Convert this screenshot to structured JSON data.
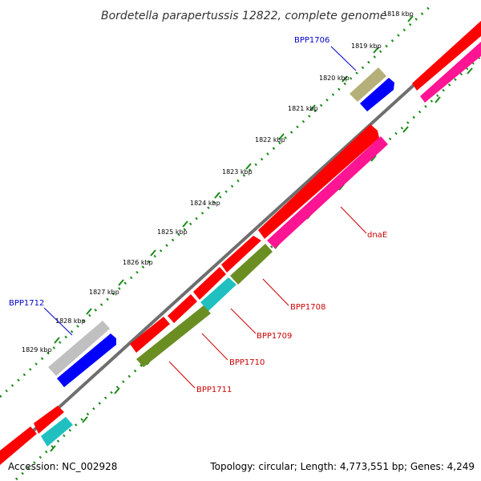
{
  "title": "Bordetella parapertussis 12822, complete genome",
  "footer": {
    "accession": "Accession: NC_002928",
    "summary": "Topology: circular; Length: 4,773,551 bp; Genes: 4,249"
  },
  "colors": {
    "backbone": "#6e6e6e",
    "tick_major": "#1a8a1a",
    "tick_minor": "#1a8a1a",
    "label_blue": "#0000cc",
    "label_red": "#cc0000",
    "red": "#ff0000",
    "pink": "#ff1493",
    "blue": "#0000ff",
    "khaki": "#b5b07a",
    "grey": "#c0c0c0",
    "olive": "#6b8e23",
    "cyan": "#20c0c0"
  },
  "ruler": {
    "unit": "kbp",
    "labels": [
      "1818 kbp",
      "1819 kbp",
      "1820 kbp",
      "1821 kbp",
      "1822 kbp",
      "1823 kbp",
      "1824 kbp",
      "1825 kbp",
      "1826 kbp",
      "1827 kbp",
      "1828 kbp",
      "1829 kbp"
    ]
  },
  "genes": [
    {
      "name": "BPP1706",
      "label_color": "blue"
    },
    {
      "name": "dnaE",
      "label_color": "red"
    },
    {
      "name": "BPP1708",
      "label_color": "red"
    },
    {
      "name": "BPP1709",
      "label_color": "red"
    },
    {
      "name": "BPP1710",
      "label_color": "red"
    },
    {
      "name": "BPP1711",
      "label_color": "red"
    },
    {
      "name": "BPP1712",
      "label_color": "blue"
    }
  ]
}
